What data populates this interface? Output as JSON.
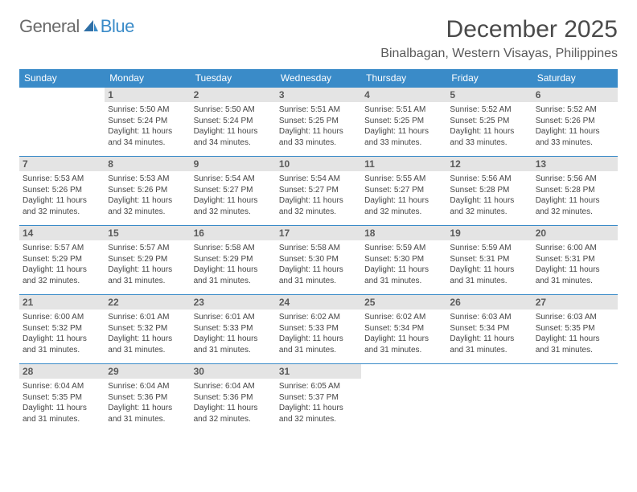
{
  "logo": {
    "word1": "General",
    "word2": "Blue"
  },
  "title": "December 2025",
  "location": "Binalbagan, Western Visayas, Philippines",
  "colors": {
    "accent": "#3a8bc8",
    "daystrip_bg": "#e4e4e4",
    "text": "#454545",
    "title_text": "#4a4a4a",
    "background": "#ffffff"
  },
  "fonts": {
    "title_size": 30,
    "location_size": 16,
    "weekday_size": 12,
    "cell_size": 10
  },
  "weekdays": [
    "Sunday",
    "Monday",
    "Tuesday",
    "Wednesday",
    "Thursday",
    "Friday",
    "Saturday"
  ],
  "weeks": [
    [
      null,
      {
        "n": "1",
        "sr": "5:50 AM",
        "ss": "5:24 PM",
        "dl": "11 hours and 34 minutes."
      },
      {
        "n": "2",
        "sr": "5:50 AM",
        "ss": "5:24 PM",
        "dl": "11 hours and 34 minutes."
      },
      {
        "n": "3",
        "sr": "5:51 AM",
        "ss": "5:25 PM",
        "dl": "11 hours and 33 minutes."
      },
      {
        "n": "4",
        "sr": "5:51 AM",
        "ss": "5:25 PM",
        "dl": "11 hours and 33 minutes."
      },
      {
        "n": "5",
        "sr": "5:52 AM",
        "ss": "5:25 PM",
        "dl": "11 hours and 33 minutes."
      },
      {
        "n": "6",
        "sr": "5:52 AM",
        "ss": "5:26 PM",
        "dl": "11 hours and 33 minutes."
      }
    ],
    [
      {
        "n": "7",
        "sr": "5:53 AM",
        "ss": "5:26 PM",
        "dl": "11 hours and 32 minutes."
      },
      {
        "n": "8",
        "sr": "5:53 AM",
        "ss": "5:26 PM",
        "dl": "11 hours and 32 minutes."
      },
      {
        "n": "9",
        "sr": "5:54 AM",
        "ss": "5:27 PM",
        "dl": "11 hours and 32 minutes."
      },
      {
        "n": "10",
        "sr": "5:54 AM",
        "ss": "5:27 PM",
        "dl": "11 hours and 32 minutes."
      },
      {
        "n": "11",
        "sr": "5:55 AM",
        "ss": "5:27 PM",
        "dl": "11 hours and 32 minutes."
      },
      {
        "n": "12",
        "sr": "5:56 AM",
        "ss": "5:28 PM",
        "dl": "11 hours and 32 minutes."
      },
      {
        "n": "13",
        "sr": "5:56 AM",
        "ss": "5:28 PM",
        "dl": "11 hours and 32 minutes."
      }
    ],
    [
      {
        "n": "14",
        "sr": "5:57 AM",
        "ss": "5:29 PM",
        "dl": "11 hours and 32 minutes."
      },
      {
        "n": "15",
        "sr": "5:57 AM",
        "ss": "5:29 PM",
        "dl": "11 hours and 31 minutes."
      },
      {
        "n": "16",
        "sr": "5:58 AM",
        "ss": "5:29 PM",
        "dl": "11 hours and 31 minutes."
      },
      {
        "n": "17",
        "sr": "5:58 AM",
        "ss": "5:30 PM",
        "dl": "11 hours and 31 minutes."
      },
      {
        "n": "18",
        "sr": "5:59 AM",
        "ss": "5:30 PM",
        "dl": "11 hours and 31 minutes."
      },
      {
        "n": "19",
        "sr": "5:59 AM",
        "ss": "5:31 PM",
        "dl": "11 hours and 31 minutes."
      },
      {
        "n": "20",
        "sr": "6:00 AM",
        "ss": "5:31 PM",
        "dl": "11 hours and 31 minutes."
      }
    ],
    [
      {
        "n": "21",
        "sr": "6:00 AM",
        "ss": "5:32 PM",
        "dl": "11 hours and 31 minutes."
      },
      {
        "n": "22",
        "sr": "6:01 AM",
        "ss": "5:32 PM",
        "dl": "11 hours and 31 minutes."
      },
      {
        "n": "23",
        "sr": "6:01 AM",
        "ss": "5:33 PM",
        "dl": "11 hours and 31 minutes."
      },
      {
        "n": "24",
        "sr": "6:02 AM",
        "ss": "5:33 PM",
        "dl": "11 hours and 31 minutes."
      },
      {
        "n": "25",
        "sr": "6:02 AM",
        "ss": "5:34 PM",
        "dl": "11 hours and 31 minutes."
      },
      {
        "n": "26",
        "sr": "6:03 AM",
        "ss": "5:34 PM",
        "dl": "11 hours and 31 minutes."
      },
      {
        "n": "27",
        "sr": "6:03 AM",
        "ss": "5:35 PM",
        "dl": "11 hours and 31 minutes."
      }
    ],
    [
      {
        "n": "28",
        "sr": "6:04 AM",
        "ss": "5:35 PM",
        "dl": "11 hours and 31 minutes."
      },
      {
        "n": "29",
        "sr": "6:04 AM",
        "ss": "5:36 PM",
        "dl": "11 hours and 31 minutes."
      },
      {
        "n": "30",
        "sr": "6:04 AM",
        "ss": "5:36 PM",
        "dl": "11 hours and 32 minutes."
      },
      {
        "n": "31",
        "sr": "6:05 AM",
        "ss": "5:37 PM",
        "dl": "11 hours and 32 minutes."
      },
      null,
      null,
      null
    ]
  ],
  "labels": {
    "sunrise": "Sunrise: ",
    "sunset": "Sunset: ",
    "daylight": "Daylight: "
  }
}
